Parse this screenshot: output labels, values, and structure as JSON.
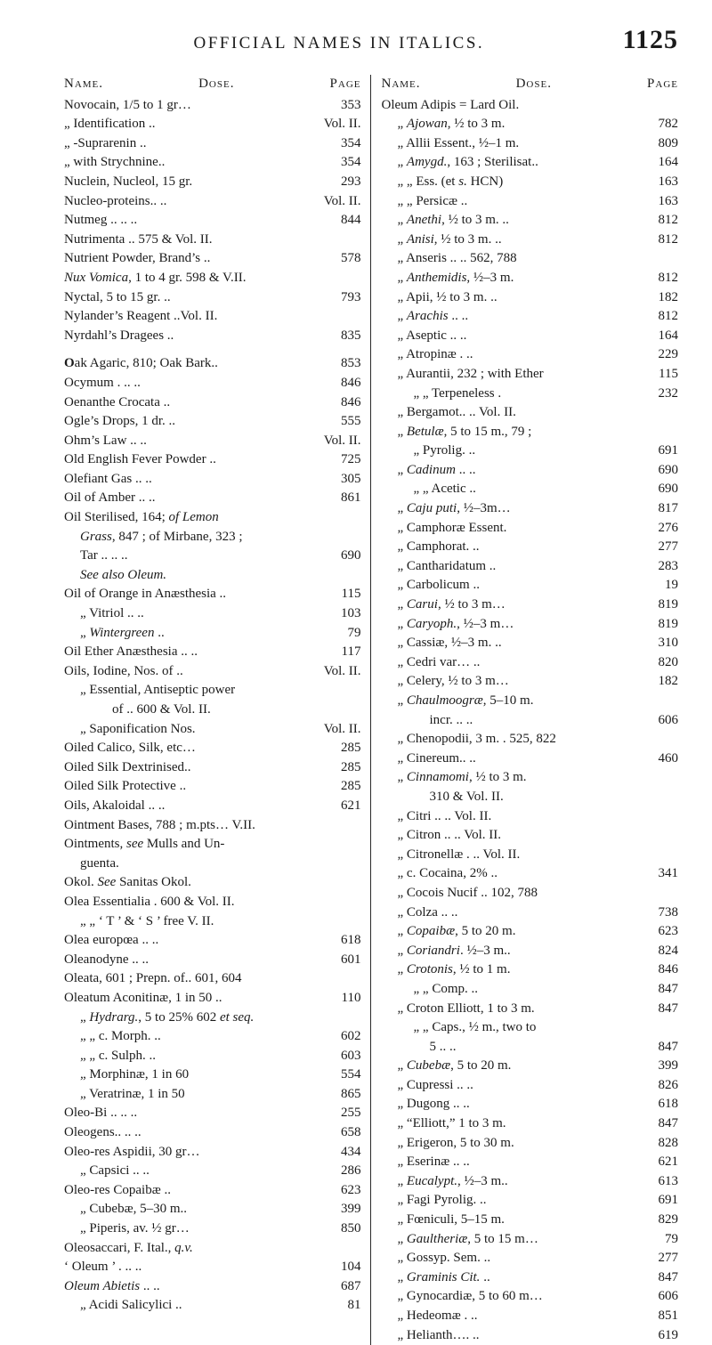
{
  "page": {
    "running_title": "OFFICIAL NAMES IN ITALICS.",
    "page_number": "1125",
    "col_header": {
      "name": "Name.",
      "dose": "Dose.",
      "page": "Page"
    }
  },
  "left": [
    {
      "label": "Novocain, 1/5 to 1 gr…",
      "page": "353"
    },
    {
      "label": "„  Identification   ..",
      "page": "Vol. II."
    },
    {
      "label": "„  -Suprarenin    ..",
      "page": "354"
    },
    {
      "label": "„  with Strychnine..",
      "page": "354"
    },
    {
      "label": "Nuclein, Nucleol, 15 gr.",
      "page": "293"
    },
    {
      "label": "Nucleo-proteins..  ..",
      "page": "Vol. II."
    },
    {
      "label": "Nutmeg ..   ..   ..",
      "page": "844"
    },
    {
      "label": "Nutrimenta   ..   575 & Vol. II.",
      "page": ""
    },
    {
      "label": "Nutrient Powder, Brand’s ..",
      "page": "578"
    },
    {
      "label_html": "<span class=\"ital\">Nux Vomica</span>, 1 to 4 gr.  598 & V.II.",
      "page": ""
    },
    {
      "label": "Nyctal, 5 to 15 gr.   ..",
      "page": "793"
    },
    {
      "label": "Nylander’s Reagent   ..Vol. II.",
      "page": ""
    },
    {
      "label": "Nyrdahl’s Dragees   ..",
      "page": "835"
    },
    {
      "gap": true
    },
    {
      "label_html": "<span class=\"bold-o\">O</span>ak Agaric, 810; Oak Bark..",
      "page": "853"
    },
    {
      "label": "Ocymum .   ..   ..",
      "page": "846"
    },
    {
      "label": "Oenanthe Crocata   ..",
      "page": "846"
    },
    {
      "label": "Ogle’s Drops, 1 dr.  ..",
      "page": "555"
    },
    {
      "label": "Ohm’s Law   ..   ..",
      "page": "Vol. II."
    },
    {
      "label": "Old English Fever Powder ..",
      "page": "725"
    },
    {
      "label": "Olefiant Gas   ..   ..",
      "page": "305"
    },
    {
      "label": "Oil of Amber  ..   ..",
      "page": "861"
    },
    {
      "label_html": "Oil Sterilised, 164; <span class=\"ital\">of Lemon</span>",
      "page": ""
    },
    {
      "label_html": "  <span class=\"ital\">Grass</span>, 847 ; of Mirbane, 323 ;",
      "page": "",
      "indent": 1
    },
    {
      "label": "Tar  ..   ..   ..",
      "page": "690",
      "indent": 1
    },
    {
      "label_html": "<span class=\"ital\">See also Oleum.</span>",
      "page": "",
      "indent": 1
    },
    {
      "label": "Oil of Orange in Anæsthesia ..",
      "page": "115"
    },
    {
      "label": "„   Vitriol  ..   ..",
      "page": "103",
      "indent": 1
    },
    {
      "label_html": "„   <span class=\"ital\">Wintergreen</span>  ..",
      "page": "79",
      "indent": 1
    },
    {
      "label": "Oil Ether Anæsthesia ..  ..",
      "page": "117"
    },
    {
      "label": "Oils, Iodine, Nos. of  ..",
      "page": "Vol. II."
    },
    {
      "label": "„  Essential, Antiseptic power",
      "page": "",
      "indent": 1
    },
    {
      "label": "of   ..   600 & Vol. II.",
      "page": "",
      "indent": 3
    },
    {
      "label": "„  Saponification Nos.",
      "page": "Vol. II.",
      "indent": 1
    },
    {
      "label": "Oiled Calico, Silk, etc…",
      "page": "285"
    },
    {
      "label": "Oiled Silk Dextrinised..",
      "page": "285"
    },
    {
      "label": "Oiled Silk Protective ..",
      "page": "285"
    },
    {
      "label": "Oils, Akaloidal ..   ..",
      "page": "621"
    },
    {
      "label": "Ointment Bases, 788 ; m.pts… V.II.",
      "page": ""
    },
    {
      "label_html": "Ointments, <span class=\"ital\">see</span> Mulls and Un-",
      "page": ""
    },
    {
      "label": "guenta.",
      "page": "",
      "indent": 1
    },
    {
      "label_html": "Okol.  <span class=\"ital\">See</span> Sanitas Okol.",
      "page": ""
    },
    {
      "label": "Olea Essentialia .   600 & Vol. II.",
      "page": ""
    },
    {
      "label": "„    „   ‘ T ’ & ‘ S ’ free V. II.",
      "page": "",
      "indent": 1
    },
    {
      "label": "Olea europœa ..   ..",
      "page": "618"
    },
    {
      "label": "Oleanodyne   ..   ..",
      "page": "601"
    },
    {
      "label": "Oleata, 601 ; Prepn. of..   601, 604",
      "page": ""
    },
    {
      "label": "Oleatum Aconitinæ, 1 in 50 ..",
      "page": "110"
    },
    {
      "label_html": "„  <span class=\"ital\">Hydrarg.</span>, 5 to 25%  602 <span class=\"ital\">et seq.</span>",
      "page": "",
      "indent": 1
    },
    {
      "label": "„   „  c. Morph.  ..",
      "page": "602",
      "indent": 1
    },
    {
      "label": "„   „  c. Sulph.  ..",
      "page": "603",
      "indent": 1
    },
    {
      "label": "„  Morphinæ, 1 in 60",
      "page": "554",
      "indent": 1
    },
    {
      "label": "„  Veratrinæ, 1 in 50",
      "page": "865",
      "indent": 1
    },
    {
      "label": "Oleo-Bi ..   ..   ..",
      "page": "255"
    },
    {
      "label": "Oleogens..   ..   ..",
      "page": "658"
    },
    {
      "label": "Oleo-res Aspidii, 30 gr…",
      "page": "434"
    },
    {
      "label": "„  Capsici  ..   ..",
      "page": "286",
      "indent": 1
    },
    {
      "label": "Oleo-res Copaibæ   ..",
      "page": "623"
    },
    {
      "label": "„  Cubebæ, 5–30 m..",
      "page": "399",
      "indent": 1
    },
    {
      "label": "„  Piperis, av. ½ gr…",
      "page": "850",
      "indent": 1
    },
    {
      "label_html": "Oleosaccari, F. Ital., <span class=\"ital\">q.v.</span>",
      "page": ""
    },
    {
      "label": "‘ Oleum ’ .   ..   ..",
      "page": "104"
    },
    {
      "label_html": "<span class=\"ital\">Oleum Abietis</span> ..   ..",
      "page": "687"
    },
    {
      "label": "„  Acidi Salicylici ..",
      "page": "81",
      "indent": 1
    }
  ],
  "right": [
    {
      "label": "Oleum Adipis = Lard Oil.",
      "page": ""
    },
    {
      "label_html": "„  <span class=\"ital\">Ajowan</span>, ½ to 3 m.",
      "page": "782",
      "indent": 1
    },
    {
      "label": "„  Allii Essent., ½–1 m.",
      "page": "809",
      "indent": 1
    },
    {
      "label_html": "„  <span class=\"ital\">Amygd.</span>, 163 ; Sterilisat..",
      "page": "164",
      "indent": 1
    },
    {
      "label_html": "„    „  Ess. (et <span class=\"ital\">s.</span> HCN)",
      "page": "163",
      "indent": 1
    },
    {
      "label": "„    „  Persicæ   ..",
      "page": "163",
      "indent": 1
    },
    {
      "label_html": "„  <span class=\"ital\">Anethi</span>, ½ to 3 m. ..",
      "page": "812",
      "indent": 1
    },
    {
      "label_html": "„  <span class=\"ital\">Anisi</span>, ½ to 3 m. ..",
      "page": "812",
      "indent": 1
    },
    {
      "label": "„  Anseris  ..   ..   562, 788",
      "page": "",
      "indent": 1
    },
    {
      "label_html": "„  <span class=\"ital\">Anthemidis</span>, ½–3 m.",
      "page": "812",
      "indent": 1
    },
    {
      "label": "„  Apii, ½ to 3 m. ..",
      "page": "182",
      "indent": 1
    },
    {
      "label_html": "„  <span class=\"ital\">Arachis</span> ..   ..",
      "page": "812",
      "indent": 1
    },
    {
      "label": "„  Aseptic  ..   ..",
      "page": "164",
      "indent": 1
    },
    {
      "label": "„  Atropinæ .   ..",
      "page": "229",
      "indent": 1
    },
    {
      "label": "„  Aurantii, 232 ; with Ether",
      "page": "115",
      "indent": 1
    },
    {
      "label": "„    „  Terpeneless .",
      "page": "232",
      "indent": 2
    },
    {
      "label": "„  Bergamot..   ..   Vol. II.",
      "page": "",
      "indent": 1
    },
    {
      "label_html": "„  <span class=\"ital\">Betulæ</span>, 5 to 15 m., 79 ;",
      "page": "",
      "indent": 1
    },
    {
      "label": "„    Pyrolig.   ..",
      "page": "691",
      "indent": 2
    },
    {
      "label_html": "„  <span class=\"ital\">Cadinum</span> ..   ..",
      "page": "690",
      "indent": 1
    },
    {
      "label": "„    „  Acetic   ..",
      "page": "690",
      "indent": 2
    },
    {
      "label_html": "„  <span class=\"ital\">Caju puti</span>, ½–3m…",
      "page": "817",
      "indent": 1
    },
    {
      "label": "„  Camphoræ Essent.",
      "page": "276",
      "indent": 1
    },
    {
      "label": "„  Camphorat.  ..",
      "page": "277",
      "indent": 1
    },
    {
      "label": "„  Cantharidatum ..",
      "page": "283",
      "indent": 1
    },
    {
      "label": "„  Carbolicum   ..",
      "page": "19",
      "indent": 1
    },
    {
      "label_html": "„  <span class=\"ital\">Carui</span>, ½ to 3 m…",
      "page": "819",
      "indent": 1
    },
    {
      "label_html": "„  <span class=\"ital\">Caryoph.</span>, ½–3 m…",
      "page": "819",
      "indent": 1
    },
    {
      "label": "„  Cassiæ, ½–3 m. ..",
      "page": "310",
      "indent": 1
    },
    {
      "label": "„  Cedri var…   ..",
      "page": "820",
      "indent": 1
    },
    {
      "label": "„  Celery, ½ to 3 m…",
      "page": "182",
      "indent": 1
    },
    {
      "label_html": "„  <span class=\"ital\">Chaulmoogræ</span>, 5–10 m.",
      "page": "",
      "indent": 1
    },
    {
      "label": "incr.   ..   ..",
      "page": "606",
      "indent": 3
    },
    {
      "label": "„  Chenopodii, 3 m. .   525, 822",
      "page": "",
      "indent": 1
    },
    {
      "label": "„  Cinereum..   ..",
      "page": "460",
      "indent": 1
    },
    {
      "label_html": "„  <span class=\"ital\">Cinnamomi</span>, ½ to 3 m.",
      "page": "",
      "indent": 1
    },
    {
      "label": "310 & Vol. II.",
      "page": "",
      "indent": 3
    },
    {
      "label": "„  Citri    ..   ..   Vol. II.",
      "page": "",
      "indent": 1
    },
    {
      "label": "„  Citron   ..   ..   Vol. II.",
      "page": "",
      "indent": 1
    },
    {
      "label": "„  Citronellæ .  ..   Vol. II.",
      "page": "",
      "indent": 1
    },
    {
      "label": "„  c. Cocaina, 2% ..",
      "page": "341",
      "indent": 1
    },
    {
      "label": "„  Cocois Nucif   ..   102, 788",
      "page": "",
      "indent": 1
    },
    {
      "label": "„  Colza    ..   ..",
      "page": "738",
      "indent": 1
    },
    {
      "label_html": "„  <span class=\"ital\">Copaibæ</span>, 5 to 20 m.",
      "page": "623",
      "indent": 1
    },
    {
      "label_html": "„  <span class=\"ital\">Coriandri</span>. ½–3 m..",
      "page": "824",
      "indent": 1
    },
    {
      "label_html": "„  <span class=\"ital\">Crotonis</span>, ½ to 1 m.",
      "page": "846",
      "indent": 1
    },
    {
      "label": "„    „  Comp.   ..",
      "page": "847",
      "indent": 2
    },
    {
      "label": "„  Croton Elliott, 1 to 3 m.",
      "page": "847",
      "indent": 1
    },
    {
      "label": "„    „  Caps., ½ m., two to",
      "page": "",
      "indent": 2
    },
    {
      "label": "5  ..   ..",
      "page": "847",
      "indent": 3
    },
    {
      "label_html": "„  <span class=\"ital\">Cubebæ</span>, 5 to 20 m.",
      "page": "399",
      "indent": 1
    },
    {
      "label": "„  Cupressi ..   ..",
      "page": "826",
      "indent": 1
    },
    {
      "label": "„  Dugong ..   ..",
      "page": "618",
      "indent": 1
    },
    {
      "label": "„  “Elliott,” 1 to 3 m.",
      "page": "847",
      "indent": 1
    },
    {
      "label": "„  Erigeron, 5 to 30 m.",
      "page": "828",
      "indent": 1
    },
    {
      "label": "„  Eserinæ  ..   ..",
      "page": "621",
      "indent": 1
    },
    {
      "label_html": "„  <span class=\"ital\">Eucalypt.</span>, ½–3 m..",
      "page": "613",
      "indent": 1
    },
    {
      "label": "„  Fagi Pyrolig.  ..",
      "page": "691",
      "indent": 1
    },
    {
      "label": "„  Fœniculi, 5–15 m.",
      "page": "829",
      "indent": 1
    },
    {
      "label_html": "„  <span class=\"ital\">Gaultheriæ</span>, 5 to 15 m…",
      "page": "79",
      "indent": 1
    },
    {
      "label": "„  Gossyp. Sem.  ..",
      "page": "277",
      "indent": 1
    },
    {
      "label_html": "„  <span class=\"ital\">Graminis Cit.</span>  ..",
      "page": "847",
      "indent": 1
    },
    {
      "label": "„  Gynocardiæ, 5 to 60 m…",
      "page": "606",
      "indent": 1
    },
    {
      "label": "„  Hedeomæ .   ..",
      "page": "851",
      "indent": 1
    },
    {
      "label": "„  Helianth….   ..",
      "page": "619",
      "indent": 1
    }
  ]
}
